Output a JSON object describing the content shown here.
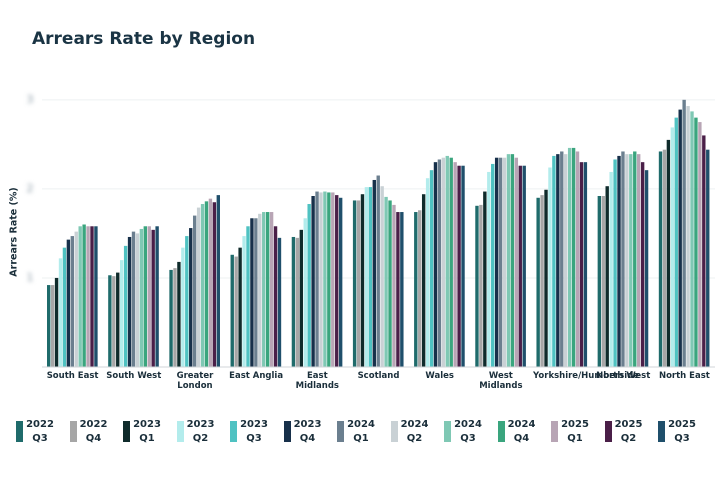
{
  "chart_data": {
    "type": "bar",
    "title": "Arrears Rate by Region",
    "y_label": "Arrears Rate (%)",
    "categories": [
      "South East",
      "South West",
      "Greater London",
      "East Anglia",
      "East Midlands",
      "Scotland",
      "Wales",
      "West Midlands",
      "Yorkshire/Humberside",
      "North West",
      "North East"
    ],
    "ylim": [
      0,
      3.2
    ],
    "yticks": [
      1,
      2,
      3
    ],
    "grid": true,
    "series": [
      {
        "name": "2022 Q3",
        "color": "#1f6b6b",
        "values": [
          0.92,
          1.03,
          1.09,
          1.26,
          1.46,
          1.87,
          1.74,
          1.81,
          1.9,
          1.92,
          2.42
        ]
      },
      {
        "name": "2022 Q4",
        "color": "#a6a6a6",
        "values": [
          0.92,
          1.02,
          1.11,
          1.24,
          1.45,
          1.87,
          1.76,
          1.82,
          1.93,
          1.92,
          2.44
        ]
      },
      {
        "name": "2023 Q1",
        "color": "#0f2b2b",
        "values": [
          1.0,
          1.06,
          1.18,
          1.34,
          1.54,
          1.94,
          1.94,
          1.97,
          1.99,
          2.03,
          2.55
        ]
      },
      {
        "name": "2023 Q2",
        "color": "#b3ecec",
        "values": [
          1.22,
          1.2,
          1.34,
          1.47,
          1.67,
          2.02,
          2.12,
          2.19,
          2.24,
          2.19,
          2.69
        ]
      },
      {
        "name": "2023 Q3",
        "color": "#4fc2c2",
        "values": [
          1.34,
          1.36,
          1.47,
          1.58,
          1.83,
          2.02,
          2.21,
          2.28,
          2.37,
          2.33,
          2.8
        ]
      },
      {
        "name": "2023 Q4",
        "color": "#17304a",
        "values": [
          1.43,
          1.46,
          1.56,
          1.67,
          1.92,
          2.1,
          2.3,
          2.35,
          2.39,
          2.37,
          2.89
        ]
      },
      {
        "name": "2024 Q1",
        "color": "#6b7f8f",
        "values": [
          1.47,
          1.52,
          1.7,
          1.67,
          1.97,
          2.15,
          2.33,
          2.35,
          2.42,
          2.42,
          3.0
        ]
      },
      {
        "name": "2024 Q2",
        "color": "#c9d1d5",
        "values": [
          1.52,
          1.5,
          1.79,
          1.72,
          1.96,
          2.03,
          2.35,
          2.35,
          2.39,
          2.39,
          2.93
        ]
      },
      {
        "name": "2024 Q3",
        "color": "#7fc8b4",
        "values": [
          1.58,
          1.55,
          1.83,
          1.74,
          1.97,
          1.91,
          2.37,
          2.39,
          2.46,
          2.39,
          2.87
        ]
      },
      {
        "name": "2024 Q4",
        "color": "#3aa57e",
        "values": [
          1.6,
          1.58,
          1.86,
          1.74,
          1.96,
          1.87,
          2.35,
          2.39,
          2.46,
          2.42,
          2.8
        ]
      },
      {
        "name": "2025 Q1",
        "color": "#b8a5b5",
        "values": [
          1.58,
          1.58,
          1.89,
          1.74,
          1.96,
          1.82,
          2.3,
          2.35,
          2.42,
          2.39,
          2.75
        ]
      },
      {
        "name": "2025 Q2",
        "color": "#4a1f48",
        "values": [
          1.58,
          1.54,
          1.85,
          1.58,
          1.93,
          1.74,
          2.26,
          2.26,
          2.3,
          2.3,
          2.6
        ]
      },
      {
        "name": "2025 Q3",
        "color": "#1f4f6b",
        "values": [
          1.58,
          1.58,
          1.93,
          1.45,
          1.9,
          1.74,
          2.26,
          2.26,
          2.3,
          2.21,
          2.44
        ]
      }
    ]
  }
}
